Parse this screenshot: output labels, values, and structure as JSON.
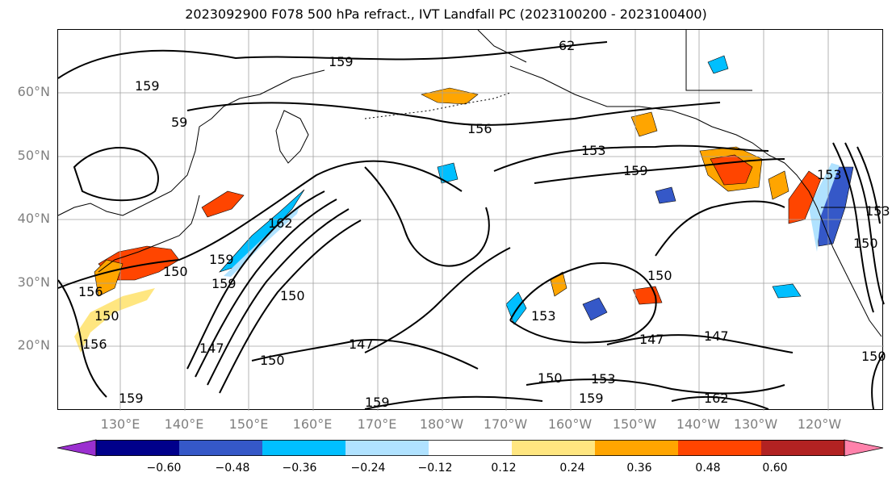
{
  "title": "2023092900 F078 500 hPa refract., IVT Landfall PC (2023100200 - 2023100400)",
  "lat_labels": [
    "60°N",
    "50°N",
    "40°N",
    "30°N",
    "20°N"
  ],
  "lon_labels": [
    "130°E",
    "140°E",
    "150°E",
    "160°E",
    "170°E",
    "180°W",
    "170°W",
    "160°W",
    "150°W",
    "140°W",
    "130°W",
    "120°W"
  ],
  "colorbar": {
    "ticks": [
      "−0.60",
      "−0.48",
      "−0.36",
      "−0.24",
      "−0.12",
      "0.12",
      "0.24",
      "0.36",
      "0.48",
      "0.60"
    ],
    "colors": [
      "#9b30d0",
      "#00008b",
      "#3558c8",
      "#00bfff",
      "#b0e2ff",
      "#ffffff",
      "#ffe680",
      "#ffa500",
      "#ff4500",
      "#b22222",
      "#ff82ab"
    ]
  },
  "contour_labels": [
    "159",
    "62",
    "159",
    "59",
    "156",
    "153",
    "159",
    "162",
    "150",
    "159",
    "150",
    "156",
    "150",
    "156",
    "147",
    "159",
    "150",
    "147",
    "150",
    "153",
    "147",
    "150",
    "153",
    "159",
    "162",
    "159",
    "153",
    "150",
    "147",
    "153",
    "150",
    "159"
  ],
  "contour_line_color": "#000000",
  "land_outline_color": "#000000",
  "grid_color": "#a0a0a0"
}
